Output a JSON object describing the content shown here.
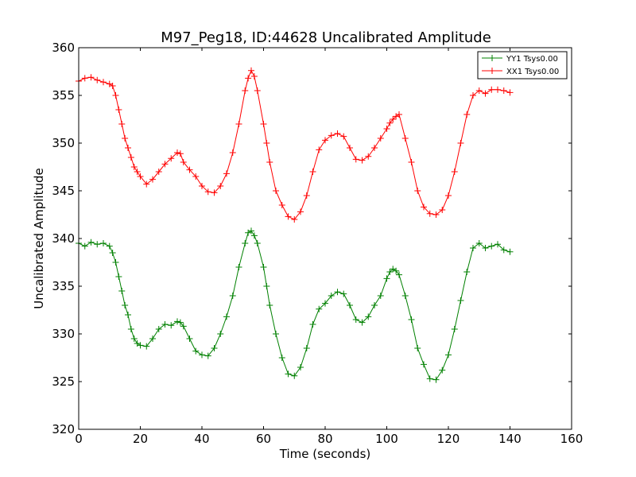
{
  "chart_data": {
    "type": "line",
    "title": "M97_Peg18, ID:44628 Uncalibrated Amplitude",
    "xlabel": "Time (seconds)",
    "ylabel": "Uncalibrated Amplitude",
    "xlim": [
      0,
      160
    ],
    "ylim": [
      320,
      360
    ],
    "xticks": [
      "0",
      "20",
      "40",
      "60",
      "80",
      "100",
      "120",
      "140",
      "160"
    ],
    "yticks": [
      "320",
      "325",
      "330",
      "335",
      "340",
      "345",
      "350",
      "355",
      "360"
    ],
    "grid": false,
    "legend_position": "top-right",
    "marker": "+",
    "series": [
      {
        "name": "YY1 Tsys0.00",
        "color": "#008000",
        "x": [
          0,
          2,
          4,
          6,
          8,
          10,
          11,
          12,
          13,
          14,
          15,
          16,
          17,
          18,
          19,
          20,
          22,
          24,
          26,
          28,
          30,
          32,
          33,
          34,
          36,
          38,
          40,
          42,
          44,
          46,
          48,
          50,
          52,
          54,
          55,
          56,
          57,
          58,
          60,
          61,
          62,
          64,
          66,
          68,
          70,
          72,
          74,
          76,
          78,
          80,
          82,
          84,
          86,
          88,
          90,
          92,
          94,
          96,
          98,
          100,
          101,
          102,
          103,
          104,
          106,
          108,
          110,
          112,
          114,
          116,
          118,
          120,
          122,
          124,
          126,
          128,
          130,
          132,
          134,
          136,
          138,
          140
        ],
        "values": [
          339.5,
          339.2,
          339.6,
          339.4,
          339.5,
          339.2,
          338.5,
          337.5,
          336.0,
          334.5,
          333.0,
          332.0,
          330.5,
          329.5,
          329.0,
          328.8,
          328.7,
          329.5,
          330.5,
          331.0,
          330.9,
          331.3,
          331.2,
          330.8,
          329.5,
          328.2,
          327.8,
          327.7,
          328.5,
          330.0,
          331.8,
          334.0,
          337.0,
          339.5,
          340.6,
          340.8,
          340.3,
          339.5,
          337.0,
          335.0,
          333.0,
          330.0,
          327.5,
          325.8,
          325.6,
          326.5,
          328.5,
          331.0,
          332.6,
          333.2,
          334.0,
          334.4,
          334.2,
          333.0,
          331.5,
          331.2,
          331.8,
          333.0,
          334.0,
          335.8,
          336.5,
          336.8,
          336.6,
          336.2,
          334.0,
          331.5,
          328.5,
          326.8,
          325.3,
          325.2,
          326.2,
          327.8,
          330.5,
          333.5,
          336.5,
          339.0,
          339.5,
          339.0,
          339.2,
          339.4,
          338.8,
          338.6
        ]
      },
      {
        "name": "XX1 Tsys0.00",
        "color": "#ff0000",
        "x": [
          0,
          2,
          4,
          6,
          8,
          10,
          11,
          12,
          13,
          14,
          15,
          16,
          17,
          18,
          19,
          20,
          22,
          24,
          26,
          28,
          30,
          32,
          33,
          34,
          36,
          38,
          40,
          42,
          44,
          46,
          48,
          50,
          52,
          54,
          55,
          56,
          57,
          58,
          60,
          61,
          62,
          64,
          66,
          68,
          70,
          72,
          74,
          76,
          78,
          80,
          82,
          84,
          86,
          88,
          90,
          92,
          94,
          96,
          98,
          100,
          101,
          102,
          103,
          104,
          106,
          108,
          110,
          112,
          114,
          116,
          118,
          120,
          122,
          124,
          126,
          128,
          130,
          132,
          134,
          136,
          138,
          140
        ],
        "values": [
          356.5,
          356.8,
          356.9,
          356.6,
          356.4,
          356.2,
          356.0,
          355.0,
          353.5,
          352.0,
          350.5,
          349.5,
          348.5,
          347.5,
          347.0,
          346.5,
          345.7,
          346.2,
          347.0,
          347.8,
          348.4,
          349.0,
          348.9,
          348.0,
          347.2,
          346.5,
          345.5,
          344.9,
          344.8,
          345.5,
          346.8,
          349.0,
          352.0,
          355.5,
          356.8,
          357.6,
          357.0,
          355.5,
          352.0,
          350.0,
          348.0,
          345.0,
          343.5,
          342.3,
          342.0,
          342.8,
          344.5,
          347.0,
          349.3,
          350.3,
          350.8,
          351.0,
          350.7,
          349.5,
          348.3,
          348.2,
          348.6,
          349.5,
          350.5,
          351.5,
          352.1,
          352.5,
          352.8,
          353.0,
          350.5,
          348.0,
          345.0,
          343.3,
          342.6,
          342.5,
          343.0,
          344.5,
          347.0,
          350.0,
          353.0,
          355.0,
          355.5,
          355.2,
          355.6,
          355.6,
          355.5,
          355.3
        ]
      }
    ]
  }
}
